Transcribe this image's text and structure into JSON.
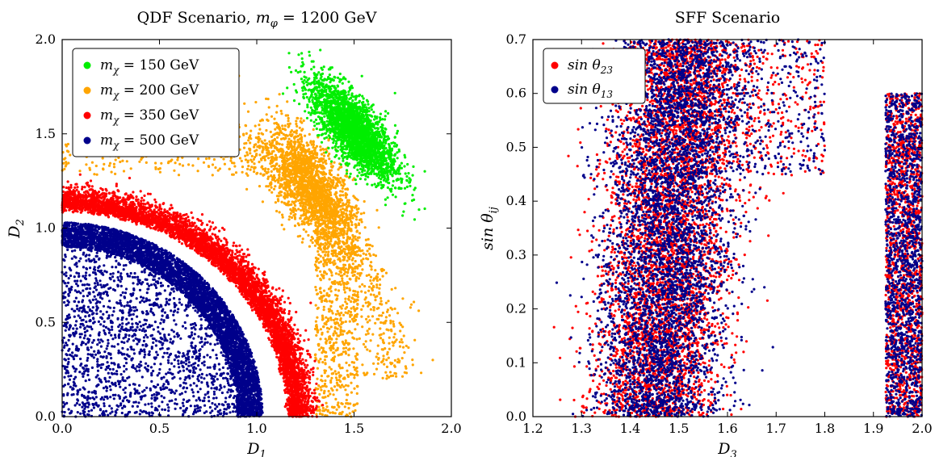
{
  "chart_data": [
    {
      "type": "scatter",
      "title": "QDF Scenario, m_φ = 1200 GeV",
      "xlabel": "D_1",
      "ylabel": "D_2",
      "xlim": [
        0.0,
        2.0
      ],
      "ylim": [
        0.0,
        2.0
      ],
      "xticks": [
        "0.0",
        "0.5",
        "1.0",
        "1.5",
        "2.0"
      ],
      "yticks": [
        "0.0",
        "0.5",
        "1.0",
        "1.5",
        "2.0"
      ],
      "grid": false,
      "legend_position": "top-left",
      "series": [
        {
          "name": "m_χ = 150 GeV",
          "color": "#00ee00",
          "description": "dense arc of points centered near D_1≈1.5, D_2≈1.45",
          "points": [
            [
              1.25,
              1.62
            ],
            [
              1.3,
              1.65
            ],
            [
              1.35,
              1.67
            ],
            [
              1.4,
              1.66
            ],
            [
              1.45,
              1.62
            ],
            [
              1.5,
              1.58
            ],
            [
              1.55,
              1.53
            ],
            [
              1.6,
              1.48
            ],
            [
              1.65,
              1.42
            ],
            [
              1.7,
              1.35
            ],
            [
              1.75,
              1.25
            ],
            [
              1.78,
              1.15
            ],
            [
              1.8,
              1.02
            ],
            [
              1.72,
              0.85
            ]
          ]
        },
        {
          "name": "m_χ = 200 GeV",
          "color": "#ffa500",
          "description": "band of points centered near D_1≈1.3, D_2≈1.25 with sparse tail to D_2=0",
          "points": [
            [
              0.0,
              1.45
            ],
            [
              0.2,
              1.4
            ],
            [
              0.5,
              1.4
            ],
            [
              0.8,
              1.38
            ],
            [
              1.0,
              1.35
            ],
            [
              1.1,
              1.35
            ],
            [
              1.2,
              1.4
            ],
            [
              1.3,
              1.38
            ],
            [
              1.35,
              1.3
            ],
            [
              1.4,
              1.2
            ],
            [
              1.45,
              1.0
            ],
            [
              1.48,
              0.8
            ],
            [
              1.5,
              0.55
            ],
            [
              1.48,
              0.3
            ],
            [
              1.45,
              0.02
            ]
          ]
        },
        {
          "name": "m_χ = 350 GeV",
          "color": "#ff0000",
          "description": "quarter-ring band between radius ~1.0 and ~1.2",
          "points": [
            [
              0.0,
              1.18
            ],
            [
              0.2,
              1.17
            ],
            [
              0.4,
              1.15
            ],
            [
              0.6,
              1.12
            ],
            [
              0.8,
              1.05
            ],
            [
              0.95,
              0.95
            ],
            [
              1.05,
              0.85
            ],
            [
              1.1,
              0.7
            ],
            [
              1.15,
              0.5
            ],
            [
              1.18,
              0.3
            ],
            [
              1.2,
              0.05
            ]
          ]
        },
        {
          "name": "m_χ = 500 GeV",
          "color": "#00008b",
          "description": "filled quarter-disk of radius ~1.05 with dense outer band",
          "points": [
            [
              0.0,
              1.05
            ],
            [
              0.2,
              1.03
            ],
            [
              0.4,
              1.0
            ],
            [
              0.6,
              0.97
            ],
            [
              0.8,
              0.9
            ],
            [
              0.9,
              0.8
            ],
            [
              0.95,
              0.65
            ],
            [
              1.0,
              0.5
            ],
            [
              1.02,
              0.3
            ],
            [
              1.05,
              0.05
            ],
            [
              0.3,
              0.2
            ],
            [
              0.5,
              0.4
            ],
            [
              0.1,
              0.6
            ]
          ]
        }
      ]
    },
    {
      "type": "scatter",
      "title": "SFF Scenario",
      "xlabel": "D_3",
      "ylabel": "sin θ_ij",
      "xlim": [
        1.2,
        2.0
      ],
      "ylim": [
        0.0,
        0.7
      ],
      "xticks": [
        "1.2",
        "1.3",
        "1.4",
        "1.5",
        "1.6",
        "1.7",
        "1.8",
        "1.9",
        "2.0"
      ],
      "yticks": [
        "0.0",
        "0.1",
        "0.2",
        "0.3",
        "0.4",
        "0.5",
        "0.6",
        "0.7"
      ],
      "grid": false,
      "legend_position": "top-left",
      "series": [
        {
          "name": "sin θ_23",
          "color": "#ff0000",
          "description": "vertical band D_3≈1.30–1.65 (denser near 1.45–1.55), plus band D_3≈1.92–2.0 for y up to ~0.57, sparse points toward D_3≈1.95 near y≈0.65",
          "points": [
            [
              1.3,
              0.05
            ],
            [
              1.35,
              0.2
            ],
            [
              1.4,
              0.4
            ],
            [
              1.45,
              0.6
            ],
            [
              1.5,
              0.68
            ],
            [
              1.55,
              0.5
            ],
            [
              1.6,
              0.3
            ],
            [
              1.65,
              0.1
            ],
            [
              1.7,
              0.62
            ],
            [
              1.8,
              0.66
            ],
            [
              1.93,
              0.3
            ],
            [
              1.97,
              0.5
            ],
            [
              1.99,
              0.1
            ]
          ]
        },
        {
          "name": "sin θ_13",
          "color": "#00008b",
          "description": "same region as sin θ_23, overlapping dense band",
          "points": [
            [
              1.32,
              0.02
            ],
            [
              1.38,
              0.25
            ],
            [
              1.42,
              0.45
            ],
            [
              1.48,
              0.62
            ],
            [
              1.52,
              0.66
            ],
            [
              1.57,
              0.4
            ],
            [
              1.62,
              0.2
            ],
            [
              1.93,
              0.2
            ],
            [
              1.96,
              0.4
            ],
            [
              1.99,
              0.55
            ]
          ]
        }
      ]
    }
  ],
  "legend_titles": {
    "left": [
      {
        "prefix": "m",
        "sub": "χ",
        "suffix": " = 150 GeV"
      },
      {
        "prefix": "m",
        "sub": "χ",
        "suffix": " = 200 GeV"
      },
      {
        "prefix": "m",
        "sub": "χ",
        "suffix": " = 350 GeV"
      },
      {
        "prefix": "m",
        "sub": "χ",
        "suffix": " = 500 GeV"
      }
    ],
    "right": [
      {
        "prefix": "sin θ",
        "sub": "23",
        "suffix": ""
      },
      {
        "prefix": "sin θ",
        "sub": "13",
        "suffix": ""
      }
    ]
  },
  "labels": {
    "left_title_main": "QDF Scenario, ",
    "left_title_m": "m",
    "left_title_sub": "φ",
    "left_title_rest": " = 1200 GeV",
    "left_xlabel": "D",
    "left_xlabel_sub": "1",
    "left_ylabel": "D",
    "left_ylabel_sub": "2",
    "right_title": "SFF Scenario",
    "right_xlabel": "D",
    "right_xlabel_sub": "3",
    "right_ylabel": "sin θ",
    "right_ylabel_sub": "ij"
  }
}
